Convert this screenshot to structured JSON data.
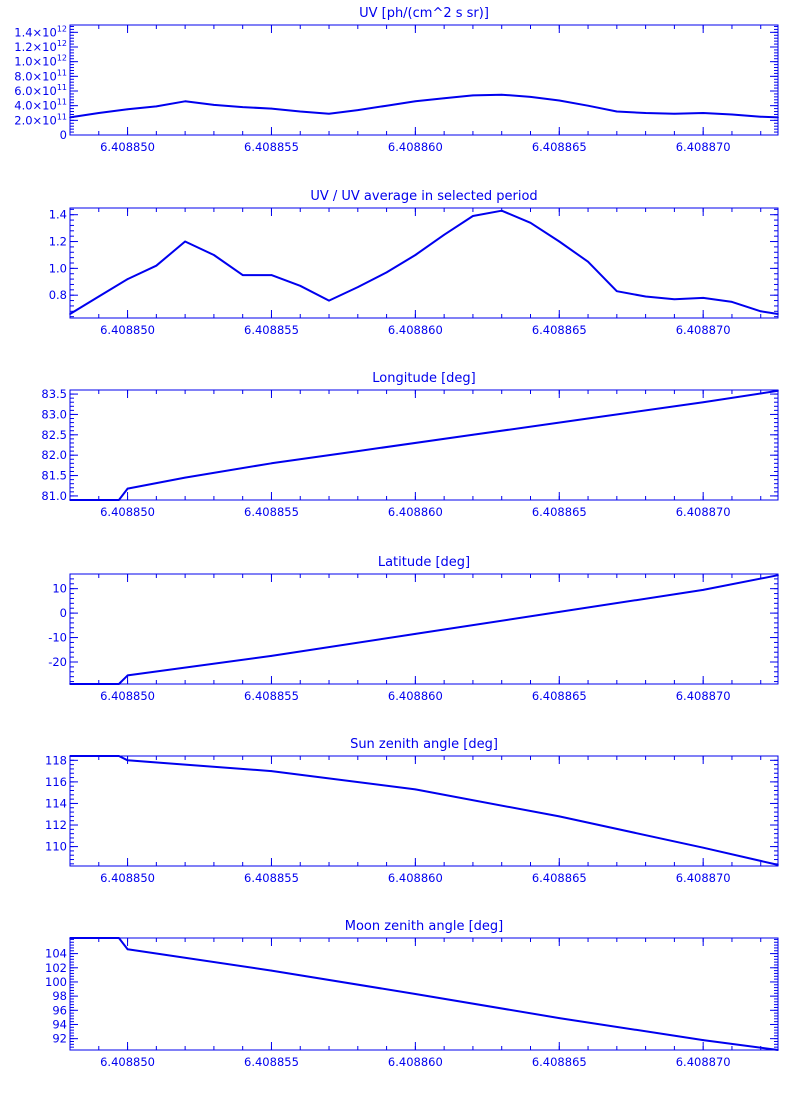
{
  "chart_data": [
    {
      "type": "line",
      "title": "UV [ph/(cm^2 s sr)]",
      "xlim": [
        6.408848,
        6.4088726
      ],
      "ylim": [
        0,
        1500000000000.0
      ],
      "x_ticks": [
        "6.408850",
        "6.408855",
        "6.408860",
        "6.408865",
        "6.408870"
      ],
      "y_ticks": [
        {
          "value": 0,
          "mantissa": "0",
          "exp": ""
        },
        {
          "value": 200000000000.0,
          "mantissa": "2.0×10",
          "exp": "11"
        },
        {
          "value": 400000000000.0,
          "mantissa": "4.0×10",
          "exp": "11"
        },
        {
          "value": 600000000000.0,
          "mantissa": "6.0×10",
          "exp": "11"
        },
        {
          "value": 800000000000.0,
          "mantissa": "8.0×10",
          "exp": "11"
        },
        {
          "value": 1000000000000.0,
          "mantissa": "1.0×10",
          "exp": "12"
        },
        {
          "value": 1200000000000.0,
          "mantissa": "1.2×10",
          "exp": "12"
        },
        {
          "value": 1400000000000.0,
          "mantissa": "1.4×10",
          "exp": "12"
        }
      ],
      "series": [
        {
          "x": [
            6.408848,
            6.408849,
            6.40885,
            6.408851,
            6.408852,
            6.408853,
            6.408854,
            6.408855,
            6.408856,
            6.408857,
            6.408858,
            6.408859,
            6.40886,
            6.408861,
            6.408862,
            6.408863,
            6.408864,
            6.408865,
            6.408866,
            6.408867,
            6.408868,
            6.408869,
            6.40887,
            6.408871,
            6.408872,
            6.4088726
          ],
          "values": [
            240000000000.0,
            300000000000.0,
            350000000000.0,
            390000000000.0,
            460000000000.0,
            410000000000.0,
            380000000000.0,
            360000000000.0,
            320000000000.0,
            290000000000.0,
            340000000000.0,
            400000000000.0,
            460000000000.0,
            500000000000.0,
            540000000000.0,
            550000000000.0,
            520000000000.0,
            470000000000.0,
            400000000000.0,
            320000000000.0,
            300000000000.0,
            290000000000.0,
            300000000000.0,
            280000000000.0,
            250000000000.0,
            240000000000.0
          ]
        }
      ]
    },
    {
      "type": "line",
      "title": "UV / UV average in selected period",
      "xlim": [
        6.408848,
        6.4088726
      ],
      "ylim": [
        0.63,
        1.45
      ],
      "x_ticks": [
        "6.408850",
        "6.408855",
        "6.408860",
        "6.408865",
        "6.408870"
      ],
      "y_ticks": [
        {
          "value": 0.8,
          "label": "0.8"
        },
        {
          "value": 1.0,
          "label": "1.0"
        },
        {
          "value": 1.2,
          "label": "1.2"
        },
        {
          "value": 1.4,
          "label": "1.4"
        }
      ],
      "series": [
        {
          "x": [
            6.408848,
            6.408849,
            6.40885,
            6.408851,
            6.408852,
            6.408853,
            6.408854,
            6.408855,
            6.408856,
            6.408857,
            6.408858,
            6.408859,
            6.40886,
            6.408861,
            6.408862,
            6.408863,
            6.408864,
            6.408865,
            6.408866,
            6.408867,
            6.408868,
            6.408869,
            6.40887,
            6.408871,
            6.408872,
            6.4088726
          ],
          "values": [
            0.66,
            0.79,
            0.92,
            1.02,
            1.2,
            1.1,
            0.95,
            0.95,
            0.87,
            0.76,
            0.86,
            0.97,
            1.1,
            1.25,
            1.39,
            1.43,
            1.34,
            1.2,
            1.05,
            0.83,
            0.79,
            0.77,
            0.78,
            0.75,
            0.68,
            0.66
          ]
        }
      ]
    },
    {
      "type": "line",
      "title": "Longitude [deg]",
      "xlim": [
        6.408848,
        6.4088726
      ],
      "ylim": [
        80.9,
        83.6
      ],
      "x_ticks": [
        "6.408850",
        "6.408855",
        "6.408860",
        "6.408865",
        "6.408870"
      ],
      "y_ticks": [
        {
          "value": 81.0,
          "label": "81.0"
        },
        {
          "value": 81.5,
          "label": "81.5"
        },
        {
          "value": 82.0,
          "label": "82.0"
        },
        {
          "value": 82.5,
          "label": "82.5"
        },
        {
          "value": 83.0,
          "label": "83.0"
        },
        {
          "value": 83.5,
          "label": "83.5"
        }
      ],
      "series": [
        {
          "x": [
            6.408848,
            6.4088497,
            6.40885,
            6.408852,
            6.408855,
            6.408858,
            6.408862,
            6.408866,
            6.40887,
            6.4088726
          ],
          "values": [
            80.9,
            80.9,
            81.18,
            81.45,
            81.8,
            82.1,
            82.5,
            82.9,
            83.3,
            83.58
          ]
        }
      ]
    },
    {
      "type": "line",
      "title": "Latitude [deg]",
      "xlim": [
        6.408848,
        6.4088726
      ],
      "ylim": [
        -29,
        16
      ],
      "x_ticks": [
        "6.408850",
        "6.408855",
        "6.408860",
        "6.408865",
        "6.408870"
      ],
      "y_ticks": [
        {
          "value": -20,
          "label": "-20"
        },
        {
          "value": -10,
          "label": "-10"
        },
        {
          "value": 0,
          "label": "0"
        },
        {
          "value": 10,
          "label": "10"
        }
      ],
      "series": [
        {
          "x": [
            6.408848,
            6.4088497,
            6.40885,
            6.408855,
            6.40886,
            6.408865,
            6.40887,
            6.4088726
          ],
          "values": [
            -29,
            -29,
            -25.5,
            -17.5,
            -8.5,
            0.5,
            9.5,
            15.5
          ]
        }
      ]
    },
    {
      "type": "line",
      "title": "Sun zenith angle [deg]",
      "xlim": [
        6.408848,
        6.4088726
      ],
      "ylim": [
        108.2,
        118.4
      ],
      "x_ticks": [
        "6.408850",
        "6.408855",
        "6.408860",
        "6.408865",
        "6.408870"
      ],
      "y_ticks": [
        {
          "value": 110,
          "label": "110"
        },
        {
          "value": 112,
          "label": "112"
        },
        {
          "value": 114,
          "label": "114"
        },
        {
          "value": 116,
          "label": "116"
        },
        {
          "value": 118,
          "label": "118"
        }
      ],
      "series": [
        {
          "x": [
            6.408848,
            6.4088497,
            6.40885,
            6.408855,
            6.40886,
            6.408865,
            6.40887,
            6.4088726
          ],
          "values": [
            118.4,
            118.4,
            118.0,
            117.0,
            115.3,
            112.8,
            109.9,
            108.3
          ]
        }
      ]
    },
    {
      "type": "line",
      "title": "Moon zenith angle [deg]",
      "xlim": [
        6.408848,
        6.4088726
      ],
      "ylim": [
        90.4,
        106.2
      ],
      "x_ticks": [
        "6.408850",
        "6.408855",
        "6.408860",
        "6.408865",
        "6.408870"
      ],
      "y_ticks": [
        {
          "value": 92,
          "label": "92"
        },
        {
          "value": 94,
          "label": "94"
        },
        {
          "value": 96,
          "label": "96"
        },
        {
          "value": 98,
          "label": "98"
        },
        {
          "value": 100,
          "label": "100"
        },
        {
          "value": 102,
          "label": "102"
        },
        {
          "value": 104,
          "label": "104"
        }
      ],
      "series": [
        {
          "x": [
            6.408848,
            6.4088497,
            6.40885,
            6.408855,
            6.40886,
            6.408865,
            6.40887,
            6.4088726
          ],
          "values": [
            106.2,
            106.2,
            104.6,
            101.6,
            98.3,
            94.9,
            91.8,
            90.4
          ]
        }
      ]
    }
  ],
  "colors": {
    "line": "#0000ee",
    "background": "#ffffff"
  }
}
